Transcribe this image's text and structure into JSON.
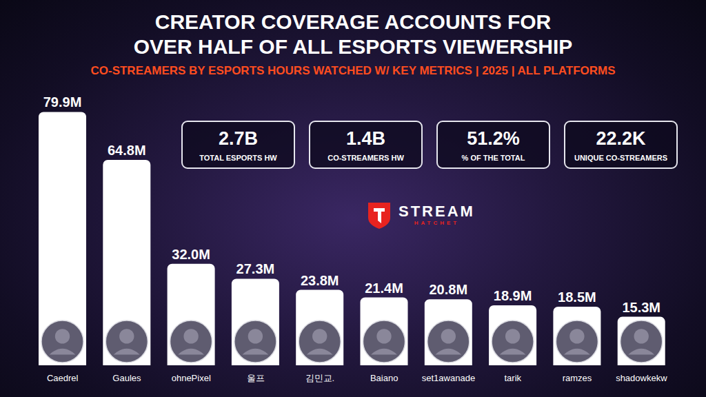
{
  "chart_data": {
    "type": "bar",
    "title": "CREATOR COVERAGE ACCOUNTS FOR OVER HALF OF ALL ESPORTS VIEWERSHIP",
    "subtitle": "CO-STREAMERS BY ESPORTS HOURS WATCHED W/ KEY METRICS | 2025 | ALL PLATFORMS",
    "categories": [
      "Caedrel",
      "Gaules",
      "ohnePixel",
      "울프",
      "김민교.",
      "Baiano",
      "set1awanade",
      "tarik",
      "ramzes",
      "shadowkekw"
    ],
    "values": [
      79.9,
      64.8,
      32.0,
      27.3,
      23.8,
      21.4,
      20.8,
      18.9,
      18.5,
      15.3
    ],
    "value_labels": [
      "79.9M",
      "64.8M",
      "32.0M",
      "27.3M",
      "23.8M",
      "21.4M",
      "20.8M",
      "18.9M",
      "18.5M",
      "15.3M"
    ],
    "color": "#ffffff",
    "ylim": [
      0,
      80
    ],
    "grid": false,
    "data_labels": true,
    "tick_labels": "x",
    "annotations": [
      {
        "value": "2.7B",
        "label": "TOTAL ESPORTS HW"
      },
      {
        "value": "1.4B",
        "label": "CO-STREAMERS HW"
      },
      {
        "value": "51.2%",
        "label": "% OF THE TOTAL"
      },
      {
        "value": "22.2K",
        "label": "UNIQUE CO-STREAMERS"
      }
    ],
    "source": "STREAM HATCHET"
  }
}
